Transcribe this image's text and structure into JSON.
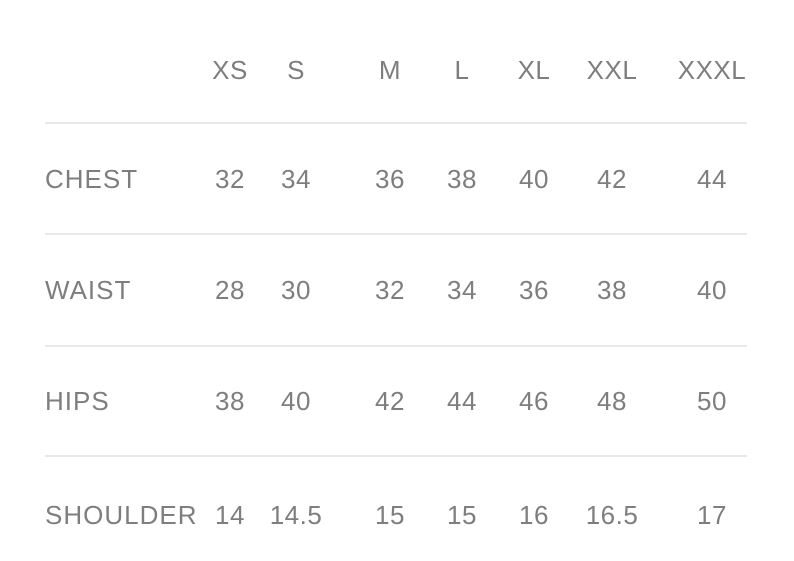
{
  "colors": {
    "background": "#ffffff",
    "text": "#7e7e7e",
    "divider": "#e9e9e9"
  },
  "table": {
    "columns": [
      "XS",
      "S",
      "M",
      "L",
      "XL",
      "XXL",
      "XXXL"
    ],
    "rows": [
      {
        "label": "CHEST",
        "values": [
          "32",
          "34",
          "36",
          "38",
          "40",
          "42",
          "44"
        ]
      },
      {
        "label": "WAIST",
        "values": [
          "28",
          "30",
          "32",
          "34",
          "36",
          "38",
          "40"
        ]
      },
      {
        "label": "HIPS",
        "values": [
          "38",
          "40",
          "42",
          "44",
          "46",
          "48",
          "50"
        ]
      },
      {
        "label": "SHOULDER",
        "values": [
          "14",
          "14.5",
          "15",
          "15",
          "16",
          "16.5",
          "17"
        ]
      }
    ]
  },
  "chart_data": {
    "type": "table",
    "title": "",
    "columns": [
      "",
      "XS",
      "S",
      "M",
      "L",
      "XL",
      "XXL",
      "XXXL"
    ],
    "rows": [
      [
        "CHEST",
        32,
        34,
        36,
        38,
        40,
        42,
        44
      ],
      [
        "WAIST",
        28,
        30,
        32,
        34,
        36,
        38,
        40
      ],
      [
        "HIPS",
        38,
        40,
        42,
        44,
        46,
        48,
        50
      ],
      [
        "SHOULDER",
        14,
        14.5,
        15,
        15,
        16,
        16.5,
        17
      ]
    ]
  }
}
